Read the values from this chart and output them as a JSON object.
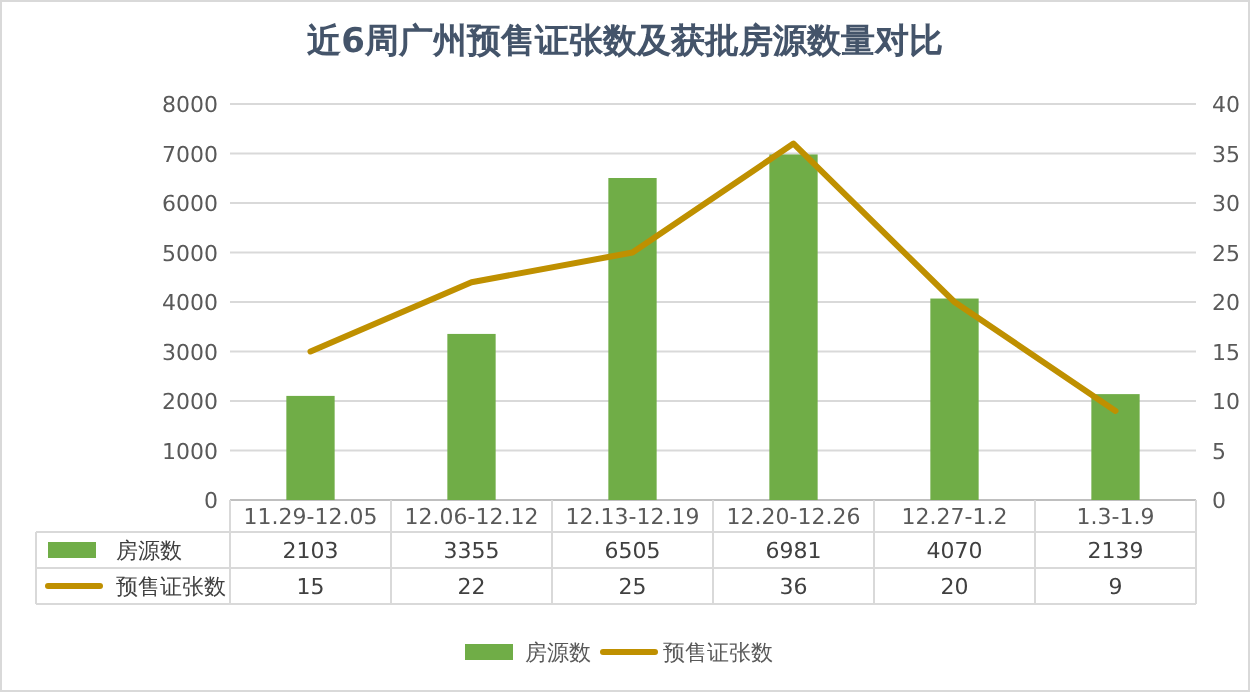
{
  "chart_data": {
    "type": "bar",
    "title": "近6周广州预售证张数及获批房源数量对比",
    "categories": [
      "11.29-12.05",
      "12.06-12.12",
      "12.13-12.19",
      "12.20-12.26",
      "12.27-1.2",
      "1.3-1.9"
    ],
    "series": [
      {
        "name": "房源数",
        "color": "#70ad47",
        "values": [
          2103,
          3355,
          6505,
          6981,
          4070,
          2139
        ]
      },
      {
        "name": "预售证张数",
        "type": "line",
        "axis": "y2",
        "color": "#bf9000",
        "values": [
          15,
          22,
          25,
          36,
          20,
          9
        ]
      }
    ],
    "ylim": [
      0,
      8000
    ],
    "yticks": [
      0,
      1000,
      2000,
      3000,
      4000,
      5000,
      6000,
      7000,
      8000
    ],
    "y2lim": [
      0,
      40
    ],
    "y2ticks": [
      0,
      5,
      10,
      15,
      20,
      25,
      30,
      35,
      40
    ],
    "grid": "y",
    "legend": "bottom",
    "data_labels": true
  }
}
